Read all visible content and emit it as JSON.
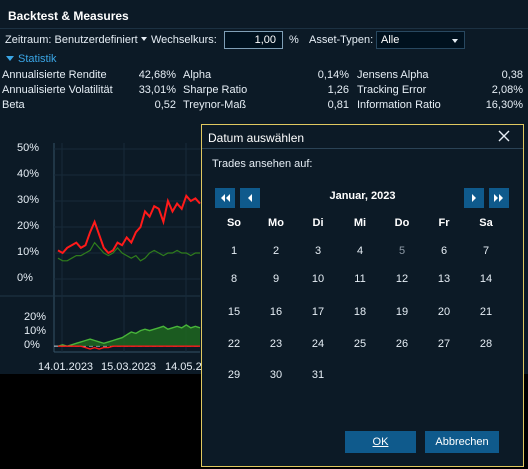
{
  "panel": {
    "title": "Backtest & Measures"
  },
  "toolbar": {
    "zeitraum_label": "Zeitraum: Benutzerdefiniert",
    "wechselkurs_label": "Wechselkurs:",
    "wechselkurs_value": "1,00",
    "percent": "%",
    "asset_label": "Asset-Typen:",
    "asset_value": "Alle"
  },
  "statistik": {
    "header": "Statistik",
    "rows": [
      {
        "label": "Annualisierte Rendite",
        "value": "42,68%",
        "label2": "Alpha",
        "value2": "0,14%",
        "label3": "Jensens Alpha",
        "value3": "0,38"
      },
      {
        "label": "Annualisierte Volatilität",
        "value": "33,01%",
        "label2": "Sharpe Ratio",
        "value2": "1,26",
        "label3": "Tracking Error",
        "value3": "2,08%"
      },
      {
        "label": "Beta",
        "value": "0,52",
        "label2": "Treynor-Maß",
        "value2": "0,81",
        "label3": "Information Ratio",
        "value3": "16,30%"
      }
    ]
  },
  "chart_data": {
    "type": "line",
    "x_tick_labels": [
      "14.01.2023",
      "15.03.2023",
      "14.05.2"
    ],
    "upper": {
      "y_tick_labels": [
        "50%",
        "40%",
        "30%",
        "20%",
        "10%",
        "0%"
      ],
      "ylim": [
        0,
        50
      ],
      "series": [
        {
          "color": "#ff1a1a",
          "values": [
            11,
            10,
            12,
            13,
            14,
            12,
            13,
            18,
            22,
            17,
            12,
            10,
            11,
            14,
            13,
            16,
            14,
            18,
            20,
            26,
            24,
            28,
            27,
            22,
            30,
            26,
            29,
            27,
            32,
            30,
            31,
            29
          ]
        },
        {
          "color": "#2f7d1c",
          "values": [
            8,
            7,
            7,
            8,
            9,
            9,
            10,
            11,
            14,
            12,
            10,
            9,
            10,
            12,
            10,
            9,
            8,
            9,
            7,
            8,
            10,
            11,
            10,
            9,
            10,
            10,
            11,
            10,
            10,
            9,
            10,
            10
          ]
        }
      ]
    },
    "lower": {
      "y_tick_labels": [
        "20%",
        "10%",
        "0%"
      ],
      "ylim": [
        -2,
        22
      ],
      "series": [
        {
          "color": "#48b53a",
          "values": [
            0,
            1,
            0,
            1,
            2,
            3,
            4,
            5,
            4,
            3,
            2,
            3,
            4,
            5,
            6,
            8,
            10,
            9,
            11,
            12,
            11,
            12,
            13,
            14,
            12,
            13,
            14,
            13,
            15,
            13,
            14,
            13
          ]
        },
        {
          "color": "#ff1a1a",
          "values": [
            0,
            0,
            0,
            0,
            0,
            0,
            -1,
            -2,
            -1,
            -2,
            -1,
            -1,
            0,
            0,
            0,
            0,
            0,
            0,
            0,
            0,
            0,
            0,
            0,
            0,
            0,
            0,
            0,
            0,
            0,
            0,
            0,
            0
          ]
        }
      ]
    }
  },
  "dialog": {
    "title": "Datum auswählen",
    "prompt": "Trades ansehen auf:",
    "month_label": "Januar, 2023",
    "weekdays": [
      "So",
      "Mo",
      "Di",
      "Mi",
      "Do",
      "Fr",
      "Sa"
    ],
    "weeks": [
      [
        "1",
        "2",
        "3",
        "4",
        "5",
        "6",
        "7"
      ],
      [
        "8",
        "9",
        "10",
        "11",
        "12",
        "13",
        "14"
      ],
      [
        "15",
        "16",
        "17",
        "18",
        "19",
        "20",
        "21"
      ],
      [
        "22",
        "23",
        "24",
        "25",
        "26",
        "27",
        "28"
      ],
      [
        "29",
        "30",
        "31",
        "",
        "",
        "",
        ""
      ]
    ],
    "dimmed_day": "5",
    "ok_label": "OK",
    "cancel_label": "Abbrechen"
  },
  "colors": {
    "panel_bg": "#0c1a26",
    "accent": "#0f5a8c",
    "header_blue": "#3aa6e6",
    "dialog_border": "#e0c860"
  },
  "icons": {
    "close": "close-icon",
    "first": "double-chevron-left-icon",
    "prev": "chevron-left-icon",
    "next": "chevron-right-icon",
    "last": "double-chevron-right-icon"
  }
}
